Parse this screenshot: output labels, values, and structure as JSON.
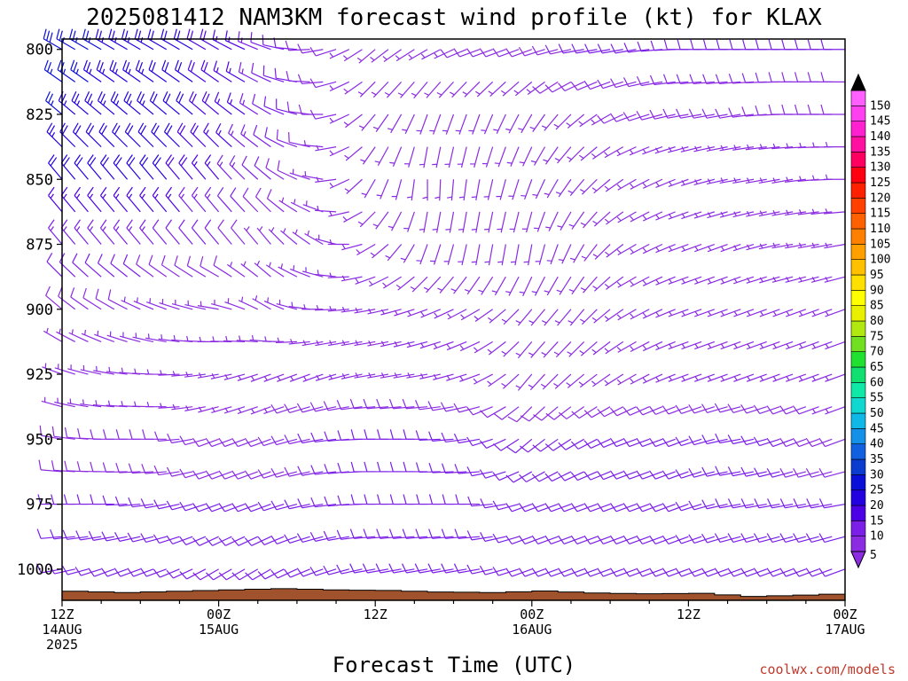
{
  "title": "2025081412 NAM3KM forecast wind profile (kt) for KLAX",
  "credit": "coolwx.com/models",
  "colors": {
    "ground": "#a0522d",
    "barb_low": "#8b2be2",
    "barb_mid": "#1e5bd6",
    "frame": "#000000"
  },
  "chart_data": {
    "type": "wind_barb_profile",
    "title": "2025081412 NAM3KM forecast wind profile (kt) for KLAX",
    "xlabel": "Forecast Time (UTC)",
    "ylabel": "",
    "y_scale": "pressure (hPa), inverted",
    "ylim": [
      1012,
      796
    ],
    "y_ticks": [
      800,
      825,
      850,
      875,
      900,
      925,
      950,
      975,
      1000
    ],
    "x_range_hours": [
      0,
      60
    ],
    "x_ticks": [
      {
        "hour": 0,
        "lines": [
          "12Z",
          "14AUG",
          "2025"
        ]
      },
      {
        "hour": 12,
        "lines": [
          "00Z",
          "15AUG"
        ]
      },
      {
        "hour": 24,
        "lines": [
          "12Z"
        ]
      },
      {
        "hour": 36,
        "lines": [
          "00Z",
          "16AUG"
        ]
      },
      {
        "hour": 48,
        "lines": [
          "12Z"
        ]
      },
      {
        "hour": 60,
        "lines": [
          "00Z",
          "17AUG"
        ]
      }
    ],
    "time_step_hours": 1,
    "levels_hpa": [
      800,
      812.5,
      825,
      837.5,
      850,
      862.5,
      875,
      887.5,
      900,
      912.5,
      925,
      937.5,
      950,
      962.5,
      975,
      987.5,
      1000,
      1012.5
    ],
    "wind_direction_deg": {
      "hours": [
        0,
        4,
        8,
        12,
        16,
        20,
        24,
        28,
        32,
        36,
        40,
        44,
        48,
        52,
        56,
        60
      ],
      "levels_hpa": [
        800,
        825,
        850,
        875,
        900,
        925,
        950,
        975,
        1000
      ],
      "values": [
        [
          300,
          300,
          300,
          300,
          290,
          260,
          230,
          240,
          250,
          250,
          260,
          260,
          270,
          270,
          270,
          270
        ],
        [
          310,
          310,
          310,
          310,
          300,
          270,
          220,
          200,
          200,
          210,
          230,
          250,
          260,
          260,
          270,
          270
        ],
        [
          320,
          320,
          320,
          320,
          310,
          280,
          210,
          180,
          190,
          200,
          220,
          240,
          250,
          260,
          260,
          270
        ],
        [
          320,
          320,
          320,
          320,
          320,
          300,
          240,
          200,
          190,
          190,
          210,
          240,
          250,
          250,
          260,
          260
        ],
        [
          310,
          300,
          290,
          280,
          300,
          270,
          260,
          250,
          240,
          220,
          220,
          240,
          250,
          250,
          250,
          250
        ],
        [
          290,
          280,
          270,
          260,
          250,
          250,
          260,
          260,
          250,
          220,
          230,
          240,
          250,
          250,
          250,
          250
        ],
        [
          280,
          270,
          270,
          250,
          250,
          260,
          270,
          270,
          260,
          230,
          240,
          250,
          250,
          260,
          250,
          250
        ],
        [
          270,
          270,
          260,
          250,
          250,
          260,
          270,
          270,
          270,
          250,
          250,
          250,
          250,
          260,
          260,
          260
        ],
        [
          260,
          250,
          250,
          240,
          240,
          250,
          260,
          260,
          260,
          250,
          250,
          250,
          250,
          250,
          250,
          250
        ]
      ]
    },
    "wind_speed_kt": {
      "hours": [
        0,
        4,
        8,
        12,
        16,
        20,
        24,
        28,
        32,
        36,
        40,
        44,
        48,
        52,
        56,
        60
      ],
      "levels_hpa": [
        800,
        825,
        850,
        875,
        900,
        925,
        950,
        975,
        1000
      ],
      "values": [
        [
          28,
          24,
          22,
          18,
          12,
          8,
          6,
          6,
          8,
          8,
          10,
          10,
          10,
          10,
          10,
          10
        ],
        [
          25,
          24,
          22,
          18,
          12,
          8,
          6,
          6,
          6,
          6,
          6,
          8,
          8,
          8,
          8,
          8
        ],
        [
          20,
          20,
          20,
          16,
          10,
          6,
          6,
          6,
          6,
          6,
          6,
          6,
          6,
          6,
          6,
          6
        ],
        [
          14,
          14,
          12,
          10,
          6,
          6,
          6,
          6,
          6,
          6,
          6,
          6,
          6,
          6,
          6,
          6
        ],
        [
          8,
          8,
          6,
          6,
          6,
          6,
          6,
          6,
          6,
          6,
          6,
          6,
          6,
          6,
          6,
          6
        ],
        [
          6,
          6,
          6,
          6,
          6,
          6,
          6,
          6,
          6,
          6,
          6,
          6,
          6,
          6,
          6,
          6
        ],
        [
          8,
          8,
          8,
          8,
          8,
          10,
          10,
          10,
          10,
          10,
          10,
          10,
          10,
          10,
          10,
          8
        ],
        [
          10,
          10,
          10,
          10,
          10,
          10,
          10,
          10,
          10,
          10,
          10,
          10,
          10,
          10,
          10,
          10
        ],
        [
          10,
          10,
          10,
          10,
          10,
          10,
          10,
          10,
          10,
          10,
          10,
          10,
          10,
          10,
          10,
          10
        ]
      ]
    },
    "surface_pressure_hpa": {
      "hours": [
        0,
        4,
        8,
        12,
        16,
        20,
        24,
        28,
        32,
        36,
        40,
        44,
        48,
        52,
        56,
        60
      ],
      "values": [
        1008.5,
        1009,
        1008.5,
        1008,
        1007.5,
        1008,
        1008.2,
        1008.8,
        1009,
        1008.4,
        1009.2,
        1009.5,
        1009.3,
        1010.5,
        1010,
        1009.3
      ]
    },
    "colorbar": {
      "label_values": [
        5,
        10,
        15,
        20,
        25,
        30,
        35,
        40,
        45,
        50,
        55,
        60,
        65,
        70,
        75,
        80,
        85,
        90,
        95,
        100,
        105,
        110,
        115,
        120,
        125,
        130,
        135,
        140,
        145,
        150
      ],
      "colors": [
        "#8b2be2",
        "#7b1fe8",
        "#4b00e6",
        "#2200e0",
        "#0a0fd8",
        "#0a3cd0",
        "#1060e0",
        "#1590e8",
        "#10b8e8",
        "#10d8d0",
        "#10e8a8",
        "#10e070",
        "#20e030",
        "#70e020",
        "#b0e810",
        "#e8f000",
        "#ffff00",
        "#ffe000",
        "#ffc000",
        "#ffa000",
        "#ff8000",
        "#ff6000",
        "#ff4000",
        "#ff2000",
        "#ff0010",
        "#ff0060",
        "#ff10a0",
        "#ff20d0",
        "#ff40f0",
        "#ff60ff"
      ]
    }
  }
}
